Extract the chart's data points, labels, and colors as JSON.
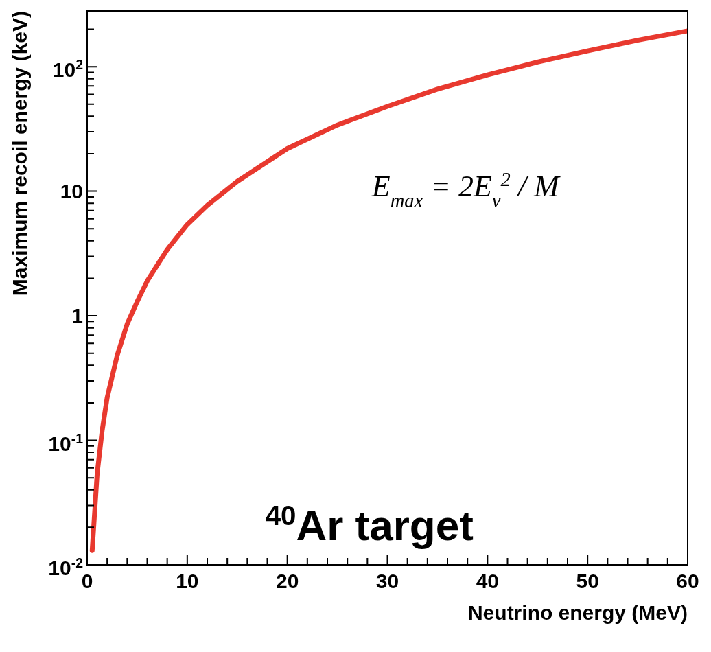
{
  "chart_data": {
    "type": "line",
    "xlabel": "Neutrino energy (MeV)",
    "ylabel": "Maximum recoil energy (keV)",
    "log": "y",
    "grid": false,
    "legend": false,
    "marker": "none",
    "line_style": "solid",
    "xlim": [
      0,
      60
    ],
    "ylim": [
      0.01,
      280
    ],
    "xticks": [
      0,
      {
        "value": 2,
        "label": null
      },
      {
        "value": 4,
        "label": null
      },
      {
        "value": 6,
        "label": null
      },
      {
        "value": 8,
        "label": null
      },
      10,
      {
        "value": 12,
        "label": null
      },
      {
        "value": 14,
        "label": null
      },
      {
        "value": 16,
        "label": null
      },
      {
        "value": 18,
        "label": null
      },
      20,
      {
        "value": 22,
        "label": null
      },
      {
        "value": 24,
        "label": null
      },
      {
        "value": 26,
        "label": null
      },
      {
        "value": 28,
        "label": null
      },
      30,
      {
        "value": 32,
        "label": null
      },
      {
        "value": 34,
        "label": null
      },
      {
        "value": 36,
        "label": null
      },
      {
        "value": 38,
        "label": null
      },
      40,
      {
        "value": 42,
        "label": null
      },
      {
        "value": 44,
        "label": null
      },
      {
        "value": 46,
        "label": null
      },
      {
        "value": 48,
        "label": null
      },
      50,
      {
        "value": 52,
        "label": null
      },
      {
        "value": 54,
        "label": null
      },
      {
        "value": 56,
        "label": null
      },
      {
        "value": 58,
        "label": null
      },
      60
    ],
    "yticks": [
      {
        "value": 0.01,
        "label": "10$^{-2}$"
      },
      {
        "value": 0.02,
        "label": null
      },
      {
        "value": 0.03,
        "label": null
      },
      {
        "value": 0.04,
        "label": null
      },
      {
        "value": 0.05,
        "label": null
      },
      {
        "value": 0.06,
        "label": null
      },
      {
        "value": 0.07,
        "label": null
      },
      {
        "value": 0.08,
        "label": null
      },
      {
        "value": 0.09,
        "label": null
      },
      {
        "value": 0.1,
        "label": "10$^{-1}$"
      },
      {
        "value": 0.2,
        "label": null
      },
      {
        "value": 0.3,
        "label": null
      },
      {
        "value": 0.4,
        "label": null
      },
      {
        "value": 0.5,
        "label": null
      },
      {
        "value": 0.6,
        "label": null
      },
      {
        "value": 0.7,
        "label": null
      },
      {
        "value": 0.8,
        "label": null
      },
      {
        "value": 0.9,
        "label": null
      },
      1,
      {
        "value": 2,
        "label": null
      },
      {
        "value": 3,
        "label": null
      },
      {
        "value": 4,
        "label": null
      },
      {
        "value": 5,
        "label": null
      },
      {
        "value": 6,
        "label": null
      },
      {
        "value": 7,
        "label": null
      },
      {
        "value": 8,
        "label": null
      },
      {
        "value": 9,
        "label": null
      },
      10,
      {
        "value": 20,
        "label": null
      },
      {
        "value": 30,
        "label": null
      },
      {
        "value": 40,
        "label": null
      },
      {
        "value": 50,
        "label": null
      },
      {
        "value": 60,
        "label": null
      },
      {
        "value": 70,
        "label": null
      },
      {
        "value": 80,
        "label": null
      },
      {
        "value": 90,
        "label": null
      },
      {
        "value": 100,
        "label": "10$^{2}$"
      },
      {
        "value": 200,
        "label": null
      }
    ],
    "annotations": [
      "E$_{max}$ = 2E$_{ν}$$^{2}$ / M",
      "$^{40}$Ar target"
    ],
    "series": [
      {
        "color": "#e8392f",
        "x": [
          0.5,
          1,
          1.5,
          2,
          3,
          4,
          5,
          6,
          8,
          10,
          12,
          15,
          20,
          25,
          30,
          35,
          40,
          45,
          50,
          55,
          60
        ],
        "values": [
          0.013,
          0.054,
          0.12,
          0.22,
          0.48,
          0.86,
          1.3,
          1.9,
          3.4,
          5.4,
          7.7,
          12,
          22,
          34,
          48,
          66,
          86,
          109,
          134,
          163,
          194
        ]
      }
    ]
  }
}
